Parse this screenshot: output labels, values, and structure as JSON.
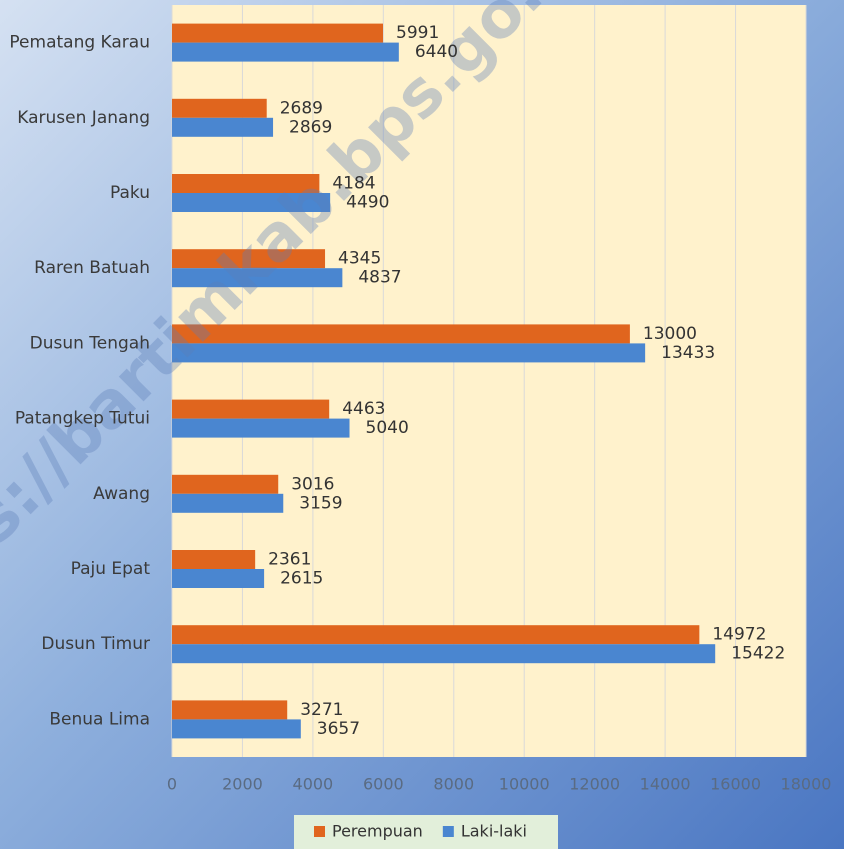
{
  "chart_data": {
    "type": "barh",
    "watermark": "https://bartimkab.bps.go.id",
    "categories": [
      "Pematang Karau",
      "Karusen Janang",
      "Paku",
      "Raren Batuah",
      "Dusun Tengah",
      "Patangkep Tutui",
      "Awang",
      "Paju Epat",
      "Dusun Timur",
      "Benua Lima"
    ],
    "series": [
      {
        "name": "Perempuan",
        "color": "#e0651e",
        "values": [
          5991,
          2689,
          4184,
          4345,
          13000,
          4463,
          3016,
          2361,
          14972,
          3271
        ]
      },
      {
        "name": "Laki-laki",
        "color": "#4a86d0",
        "values": [
          6440,
          2869,
          4490,
          4837,
          13433,
          5040,
          3159,
          2615,
          15422,
          3657
        ]
      }
    ],
    "xlim": [
      0,
      18000
    ],
    "xticks": [
      0,
      2000,
      4000,
      6000,
      8000,
      10000,
      12000,
      14000,
      16000,
      18000
    ],
    "grid": true,
    "legend": "bottom"
  }
}
